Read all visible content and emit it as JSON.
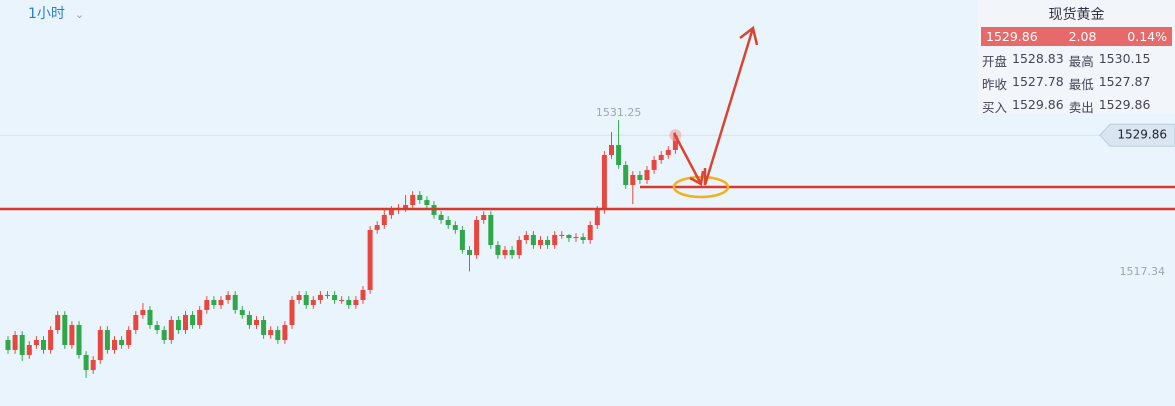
{
  "toolbar": {
    "period": "1小时"
  },
  "quote": {
    "name": "现货黄金",
    "price": "1529.86",
    "change": "2.08",
    "change_pct": "0.14%",
    "rows": [
      [
        "开盘",
        "1528.83",
        "最高",
        "1530.15"
      ],
      [
        "昨收",
        "1527.78",
        "最低",
        "1527.87"
      ],
      [
        "买入",
        "1529.86",
        "卖出",
        "1529.86"
      ]
    ]
  },
  "chart_data": {
    "type": "candlestick",
    "up_color": "#e8473f",
    "down_color": "#2fa84a",
    "open": [
      1511.12,
      1510.21,
      1511.58,
      1509.75,
      1510.66,
      1511.12,
      1510.21,
      1512.03,
      1513.41,
      1510.66,
      1512.49,
      1509.75,
      1508.37,
      1509.29,
      1512.03,
      1510.21,
      1511.12,
      1510.66,
      1512.03,
      1513.41,
      1513.87,
      1512.49,
      1512.03,
      1511.12,
      1512.95,
      1512.03,
      1513.41,
      1512.49,
      1513.87,
      1514.78,
      1514.32,
      1514.78,
      1515.24,
      1513.87,
      1513.41,
      1512.49,
      1512.95,
      1511.58,
      1512.03,
      1511.12,
      1512.49,
      1514.78,
      1515.24,
      1514.32,
      1514.78,
      1515.24,
      1515.24,
      1514.78,
      1514.78,
      1514.32,
      1514.78,
      1515.7,
      1521.19,
      1521.64,
      1522.56,
      1523.02,
      1523.2,
      1523.47,
      1524.39,
      1523.93,
      1523.47,
      1522.56,
      1522.1,
      1521.64,
      1521.19,
      1519.36,
      1518.9,
      1522.1,
      1522.56,
      1519.81,
      1518.9,
      1519.36,
      1518.9,
      1520.27,
      1520.73,
      1519.81,
      1520.27,
      1519.81,
      1520.73,
      1520.73,
      1520.45,
      1520.54,
      1520.27,
      1521.64,
      1523.02,
      1528.05,
      1528.96,
      1527.13,
      1525.3,
      1526.22,
      1525.76,
      1526.68,
      1527.59,
      1528.05,
      1528.51
    ],
    "high": [
      1511.47,
      1511.93,
      1511.93,
      1511.01,
      1511.47,
      1511.47,
      1512.38,
      1513.76,
      1513.76,
      1512.84,
      1512.84,
      1510.1,
      1509.64,
      1512.38,
      1512.38,
      1511.47,
      1511.47,
      1512.38,
      1513.76,
      1514.5,
      1514.22,
      1512.84,
      1512.38,
      1513.3,
      1513.3,
      1513.76,
      1513.76,
      1514.22,
      1515.13,
      1515.13,
      1515.13,
      1515.59,
      1515.59,
      1514.22,
      1513.76,
      1513.3,
      1513.3,
      1512.38,
      1512.38,
      1512.84,
      1515.13,
      1515.59,
      1515.59,
      1515.13,
      1515.59,
      1515.59,
      1515.59,
      1515.13,
      1515.13,
      1515.13,
      1516.05,
      1521.54,
      1521.99,
      1523.2,
      1523.37,
      1523.55,
      1524.39,
      1524.74,
      1524.74,
      1524.28,
      1523.82,
      1522.91,
      1522.45,
      1521.99,
      1521.54,
      1519.71,
      1522.45,
      1522.91,
      1522.91,
      1520.16,
      1519.71,
      1519.71,
      1520.62,
      1521.08,
      1521.08,
      1520.62,
      1520.62,
      1521.08,
      1521.08,
      1520.8,
      1520.89,
      1520.89,
      1521.99,
      1523.37,
      1528.4,
      1530.15,
      1531.25,
      1527.48,
      1526.57,
      1526.57,
      1527.03,
      1527.94,
      1528.4,
      1528.86,
      1530.15
    ],
    "low": [
      1509.86,
      1509.86,
      1509.2,
      1509.4,
      1510.31,
      1509.86,
      1509.86,
      1511.68,
      1510.31,
      1510.31,
      1509.4,
      1507.65,
      1508.02,
      1508.94,
      1509.86,
      1509.86,
      1510.31,
      1510.31,
      1511.68,
      1513.06,
      1512.14,
      1511.68,
      1510.77,
      1510.77,
      1511.68,
      1511.68,
      1512.14,
      1512.14,
      1513.52,
      1513.97,
      1513.97,
      1514.43,
      1513.52,
      1513.06,
      1512.14,
      1512.14,
      1511.23,
      1511.23,
      1510.77,
      1510.77,
      1512.14,
      1514.43,
      1513.97,
      1513.97,
      1514.43,
      1514.89,
      1514.43,
      1514.43,
      1513.97,
      1513.97,
      1514.43,
      1515.35,
      1520.84,
      1521.29,
      1522.21,
      1522.67,
      1522.85,
      1523.12,
      1523.58,
      1523.12,
      1522.21,
      1521.75,
      1521.29,
      1520.84,
      1519.01,
      1517.4,
      1518.55,
      1521.75,
      1519.46,
      1518.55,
      1518.55,
      1518.55,
      1518.55,
      1519.92,
      1519.46,
      1519.46,
      1519.46,
      1519.46,
      1520.38,
      1520.1,
      1520.1,
      1519.92,
      1519.92,
      1521.29,
      1522.67,
      1527.7,
      1526.78,
      1524.95,
      1523.55,
      1525.41,
      1525.41,
      1526.33,
      1527.24,
      1527.7,
      1528.16
    ],
    "close": [
      1510.21,
      1511.58,
      1509.75,
      1510.66,
      1511.12,
      1510.21,
      1512.03,
      1513.41,
      1510.66,
      1512.49,
      1509.75,
      1508.37,
      1509.29,
      1512.03,
      1510.21,
      1511.12,
      1510.66,
      1512.03,
      1513.41,
      1513.87,
      1512.49,
      1512.03,
      1511.12,
      1512.95,
      1512.03,
      1513.41,
      1512.49,
      1513.87,
      1514.78,
      1514.32,
      1514.78,
      1515.24,
      1513.87,
      1513.41,
      1512.49,
      1512.95,
      1511.58,
      1512.03,
      1511.12,
      1512.49,
      1514.78,
      1515.24,
      1514.32,
      1514.78,
      1515.24,
      1515.24,
      1514.78,
      1514.78,
      1514.32,
      1514.78,
      1515.7,
      1521.19,
      1521.64,
      1522.56,
      1523.02,
      1523.2,
      1523.47,
      1524.39,
      1523.93,
      1523.47,
      1522.56,
      1522.1,
      1521.64,
      1521.19,
      1519.36,
      1518.9,
      1522.1,
      1522.56,
      1519.81,
      1518.9,
      1519.36,
      1518.9,
      1520.27,
      1520.73,
      1519.81,
      1520.27,
      1519.81,
      1520.73,
      1520.73,
      1520.45,
      1520.54,
      1520.27,
      1521.64,
      1523.02,
      1528.05,
      1528.96,
      1527.13,
      1525.3,
      1526.22,
      1525.76,
      1526.68,
      1527.59,
      1528.05,
      1528.51,
      1529.86
    ],
    "ylim": [
      1505.08,
      1542.23
    ],
    "yticks": [
      1517.34
    ],
    "hlines": [
      1523.11,
      1525.12
    ],
    "hline_color": "#d63a2a"
  }
}
